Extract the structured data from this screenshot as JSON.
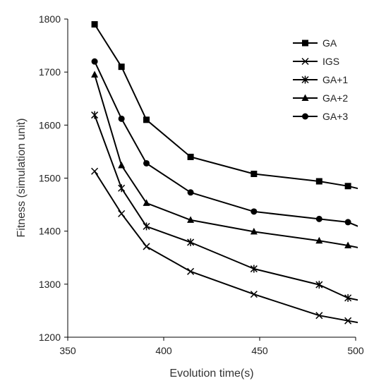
{
  "chart_data": {
    "type": "line",
    "title": "",
    "xlabel": "Evolution time(s)",
    "ylabel": "Fitness (simulation unit)",
    "xlim": [
      350,
      500
    ],
    "ylim": [
      1200,
      1800
    ],
    "xticks": [
      350,
      400,
      450,
      500
    ],
    "yticks": [
      1200,
      1300,
      1400,
      1500,
      1600,
      1700,
      1800
    ],
    "grid": false,
    "legend_position": "top-right",
    "series": [
      {
        "name": "GA",
        "marker": "square",
        "x": [
          364,
          378,
          391,
          414,
          447,
          481,
          496,
          504
        ],
        "y": [
          1790,
          1710,
          1610,
          1540,
          1508,
          1494,
          1485,
          1478
        ]
      },
      {
        "name": "IGS",
        "marker": "x",
        "x": [
          364,
          378,
          391,
          414,
          447,
          481,
          496,
          504
        ],
        "y": [
          1513,
          1433,
          1371,
          1324,
          1281,
          1241,
          1231,
          1226
        ]
      },
      {
        "name": "GA+1",
        "marker": "asterisk",
        "x": [
          364,
          378,
          391,
          414,
          447,
          481,
          496,
          504
        ],
        "y": [
          1619,
          1481,
          1409,
          1379,
          1329,
          1299,
          1274,
          1268
        ]
      },
      {
        "name": "GA+2",
        "marker": "triangle",
        "x": [
          364,
          378,
          391,
          414,
          447,
          481,
          496,
          504
        ],
        "y": [
          1695,
          1524,
          1453,
          1421,
          1399,
          1382,
          1373,
          1367
        ]
      },
      {
        "name": "GA+3",
        "marker": "circle",
        "x": [
          364,
          378,
          391,
          414,
          447,
          481,
          496,
          504
        ],
        "y": [
          1720,
          1612,
          1528,
          1473,
          1437,
          1423,
          1417,
          1405
        ]
      }
    ]
  }
}
